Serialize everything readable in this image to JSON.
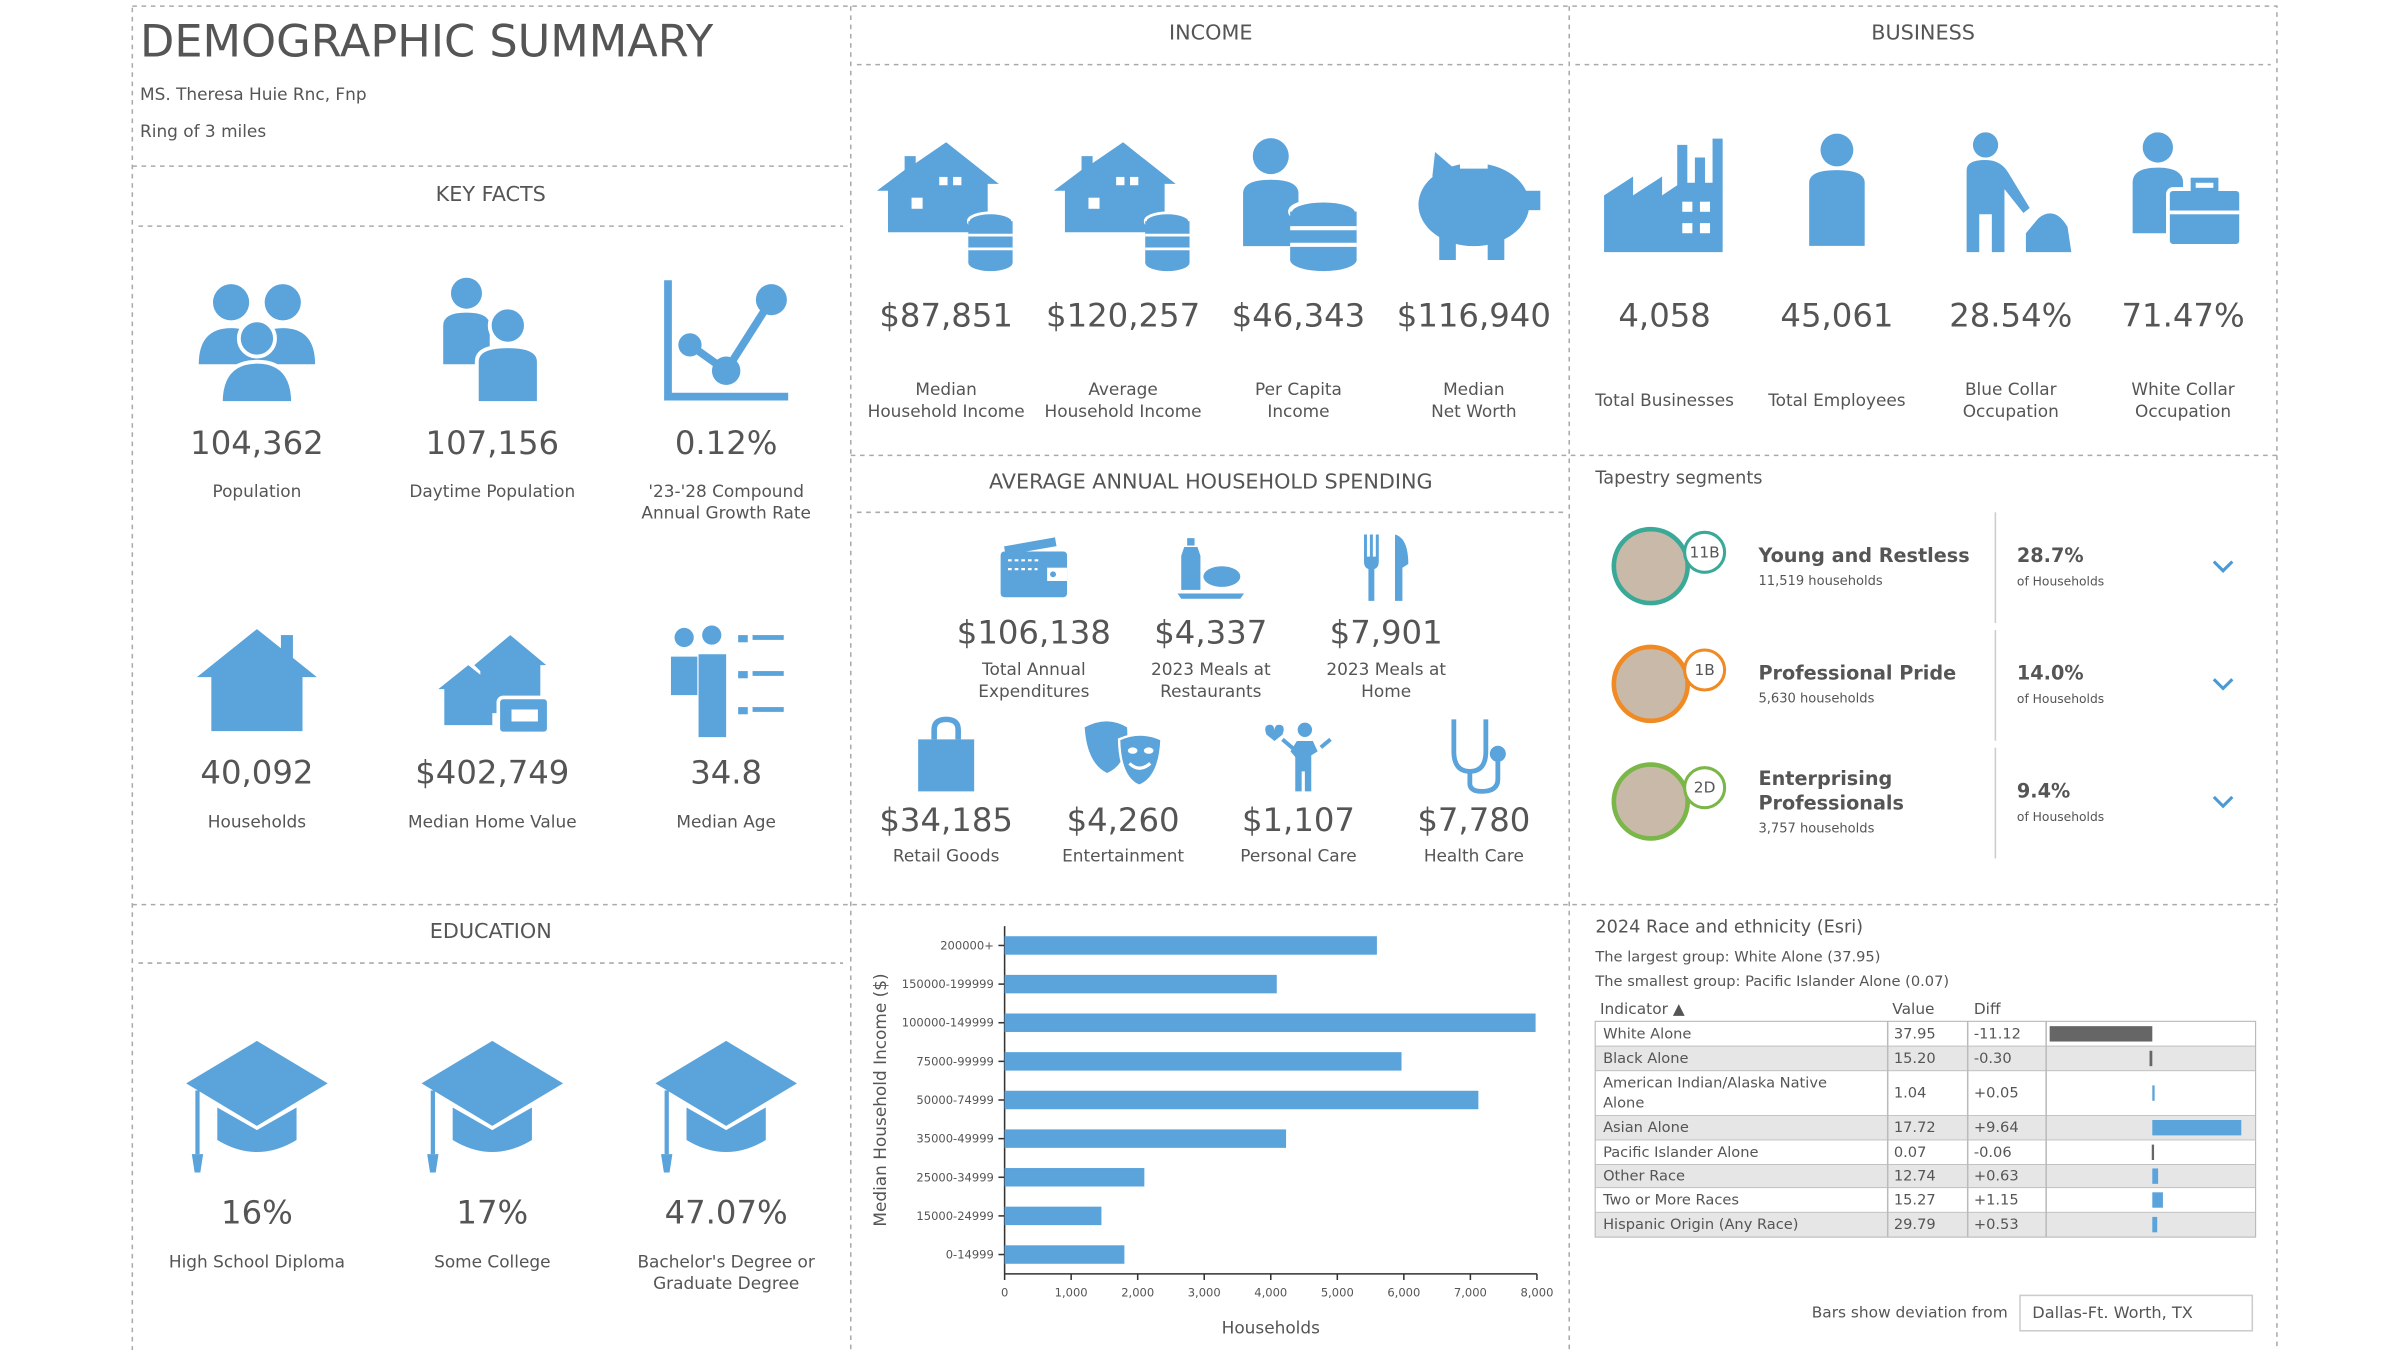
{
  "header": {
    "title": "DEMOGRAPHIC SUMMARY",
    "subtitle": "MS. Theresa Huie Rnc, Fnp",
    "area": "Ring of 3 miles"
  },
  "key_facts": {
    "title": "KEY FACTS",
    "items": [
      {
        "value": "104,362",
        "label": [
          "Population"
        ]
      },
      {
        "value": "107,156",
        "label": [
          "Daytime Population"
        ]
      },
      {
        "value": "0.12%",
        "label": [
          "'23-'28 Compound",
          "Annual Growth Rate"
        ]
      },
      {
        "value": "40,092",
        "label": [
          "Households"
        ]
      },
      {
        "value": "$402,749",
        "label": [
          "Median Home Value"
        ]
      },
      {
        "value": "34.8",
        "label": [
          "Median Age"
        ]
      }
    ]
  },
  "income": {
    "title": "INCOME",
    "items": [
      {
        "value": "$87,851",
        "label": [
          "Median",
          "Household Income"
        ]
      },
      {
        "value": "$120,257",
        "label": [
          "Average",
          "Household Income"
        ]
      },
      {
        "value": "$46,343",
        "label": [
          "Per Capita",
          "Income"
        ]
      },
      {
        "value": "$116,940",
        "label": [
          "Median",
          "Net Worth"
        ]
      }
    ]
  },
  "business": {
    "title": "BUSINESS",
    "items": [
      {
        "value": "4,058",
        "label": [
          "Total Businesses"
        ]
      },
      {
        "value": "45,061",
        "label": [
          "Total Employees"
        ]
      },
      {
        "value": "28.54%",
        "label": [
          "Blue Collar",
          "Occupation"
        ]
      },
      {
        "value": "71.47%",
        "label": [
          "White Collar",
          "Occupation"
        ]
      }
    ]
  },
  "spending": {
    "title": "AVERAGE ANNUAL HOUSEHOLD SPENDING",
    "items": [
      {
        "value": "$106,138",
        "label": [
          "Total Annual",
          "Expenditures"
        ]
      },
      {
        "value": "$4,337",
        "label": [
          "2023 Meals at",
          "Restaurants"
        ]
      },
      {
        "value": "$7,901",
        "label": [
          "2023 Meals at",
          "Home"
        ]
      },
      {
        "value": "$34,185",
        "label": [
          "Retail Goods"
        ]
      },
      {
        "value": "$4,260",
        "label": [
          "Entertainment"
        ]
      },
      {
        "value": "$1,107",
        "label": [
          "Personal Care"
        ]
      },
      {
        "value": "$7,780",
        "label": [
          "Health Care"
        ]
      }
    ]
  },
  "tapestry": {
    "title": "Tapestry segments",
    "segments": [
      {
        "code": "11B",
        "name": [
          "Young and Restless"
        ],
        "households": "11,519 households",
        "percent": "28.7%",
        "percent_label": "of Households"
      },
      {
        "code": "1B",
        "name": [
          "Professional Pride"
        ],
        "households": "5,630 households",
        "percent": "14.0%",
        "percent_label": "of Households"
      },
      {
        "code": "2D",
        "name": [
          "Enterprising",
          "Professionals"
        ],
        "households": "3,757 households",
        "percent": "9.4%",
        "percent_label": "of Households"
      }
    ]
  },
  "education": {
    "title": "EDUCATION",
    "items": [
      {
        "value": "16%",
        "label": [
          "High School Diploma"
        ]
      },
      {
        "value": "17%",
        "label": [
          "Some College"
        ]
      },
      {
        "value": "47.07%",
        "label": [
          "Bachelor's Degree or",
          "Graduate Degree"
        ]
      }
    ]
  },
  "income_chart": {
    "type": "bar",
    "orientation": "horizontal",
    "color": "#5aa3db",
    "categories": [
      "200000+",
      "150000-199999",
      "100000-149999",
      "75000-99999",
      "50000-74999",
      "35000-49999",
      "25000-34999",
      "15000-24999",
      "0-14999"
    ],
    "values": [
      5595,
      4090,
      7980,
      5965,
      7120,
      4230,
      2100,
      1455,
      1800
    ],
    "xlim": [
      0,
      8000
    ],
    "xticks": [
      0,
      {
        "value": 1000,
        "label": "1,000"
      },
      {
        "value": 2000,
        "label": "2,000"
      },
      {
        "value": 3000,
        "label": "3,000"
      },
      {
        "value": 4000,
        "label": "4,000"
      },
      {
        "value": 5000,
        "label": "5,000"
      },
      {
        "value": 6000,
        "label": "6,000"
      },
      {
        "value": 7000,
        "label": "7,000"
      },
      {
        "value": 8000,
        "label": "8,000"
      }
    ],
    "xlabel": "Households",
    "ylabel": "Median Household Income ($)"
  },
  "race": {
    "title": "2024 Race and ethnicity (Esri)",
    "largest": "The largest group: White Alone (37.95)",
    "smallest": "The smallest group: Pacific Islander Alone (0.07)",
    "columns": [
      "Indicator ▲",
      "Value",
      "Diff"
    ],
    "rows": [
      {
        "indicator": [
          "White Alone"
        ],
        "value": "37.95",
        "diff": -11.12,
        "diff_label": "-11.12"
      },
      {
        "indicator": [
          "Black Alone"
        ],
        "value": "15.20",
        "diff": -0.3,
        "diff_label": "-0.30"
      },
      {
        "indicator": [
          "American Indian/Alaska Native",
          "Alone"
        ],
        "value": "1.04",
        "diff": 0.05,
        "diff_label": "+0.05"
      },
      {
        "indicator": [
          "Asian Alone"
        ],
        "value": "17.72",
        "diff": 9.64,
        "diff_label": "+9.64"
      },
      {
        "indicator": [
          "Pacific Islander Alone"
        ],
        "value": "0.07",
        "diff": -0.06,
        "diff_label": "-0.06"
      },
      {
        "indicator": [
          "Other Race"
        ],
        "value": "12.74",
        "diff": 0.63,
        "diff_label": "+0.63"
      },
      {
        "indicator": [
          "Two or More Races"
        ],
        "value": "15.27",
        "diff": 1.15,
        "diff_label": "+1.15"
      },
      {
        "indicator": [
          "Hispanic Origin (Any Race)"
        ],
        "value": "29.79",
        "diff": 0.53,
        "diff_label": "+0.53"
      }
    ]
  },
  "footer": {
    "label": "Bars show deviation from",
    "selection": "Dallas-Ft. Worth, TX"
  }
}
